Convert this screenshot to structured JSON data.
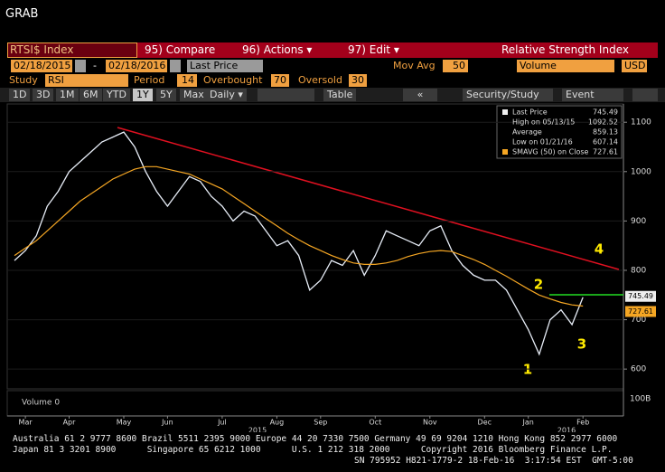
{
  "header": {
    "title": "GRAB"
  },
  "toolbar": {
    "ticker": "RTSI$ Index",
    "menu": [
      "95) Compare",
      "96) Actions ▾",
      "97) Edit ▾"
    ],
    "study_title": "Relative Strength Index",
    "start_date": "02/18/2015",
    "separator": "-",
    "end_date": "02/18/2016",
    "price_field": "Last Price",
    "mov_avg_label": "Mov Avg",
    "mov_avg": "50",
    "lower_field": "Volume",
    "currency": "USD",
    "study_label": "Study",
    "study": "RSI",
    "period_label": "Period",
    "period": "14",
    "overbought_label": "Overbought",
    "overbought": "70",
    "oversold_label": "Oversold",
    "oversold": "30",
    "ranges": [
      "1D",
      "3D",
      "1M",
      "6M",
      "YTD",
      "1Y",
      "5Y",
      "Max"
    ],
    "frequency": "Daily ▾",
    "table": "Table",
    "back": "«",
    "security_study": "Security/Study",
    "event": "Event"
  },
  "chart_data": {
    "type": "line",
    "categories": [
      null,
      "Mar",
      null,
      null,
      null,
      "Apr",
      null,
      null,
      null,
      null,
      "May",
      null,
      null,
      null,
      "Jun",
      null,
      null,
      null,
      null,
      "Jul",
      null,
      null,
      null,
      null,
      "Aug",
      null,
      null,
      null,
      "Sep",
      null,
      null,
      null,
      null,
      "Oct",
      null,
      null,
      null,
      null,
      "Nov",
      null,
      null,
      null,
      null,
      "Dec",
      null,
      null,
      null,
      "Jan",
      null,
      null,
      null,
      null,
      "Feb"
    ],
    "year_labels": [
      "2015",
      "2016"
    ],
    "series": [
      {
        "name": "Last Price",
        "color": "#e8eef8",
        "values": [
          820,
          840,
          870,
          930,
          960,
          1000,
          1020,
          1040,
          1060,
          1070,
          1080,
          1050,
          1000,
          960,
          930,
          960,
          990,
          980,
          950,
          930,
          900,
          920,
          910,
          880,
          850,
          860,
          830,
          760,
          780,
          820,
          810,
          840,
          790,
          830,
          880,
          870,
          860,
          850,
          880,
          890,
          840,
          810,
          790,
          780,
          780,
          760,
          720,
          680,
          630,
          700,
          720,
          690,
          745.49
        ]
      },
      {
        "name": "SMAVG (50) on Close",
        "color": "#f5a623",
        "values": [
          830,
          845,
          860,
          880,
          900,
          920,
          940,
          955,
          970,
          985,
          995,
          1005,
          1010,
          1010,
          1005,
          1000,
          995,
          985,
          975,
          965,
          950,
          935,
          920,
          905,
          890,
          875,
          862,
          850,
          840,
          830,
          822,
          815,
          812,
          812,
          815,
          820,
          828,
          834,
          838,
          840,
          838,
          830,
          822,
          812,
          800,
          788,
          775,
          762,
          750,
          742,
          735,
          730,
          727.61
        ]
      }
    ],
    "stats": [
      {
        "label": "Last Price",
        "value": 745.49
      },
      {
        "label": "High on 05/13/15",
        "value": 1092.52
      },
      {
        "label": "Average",
        "value": 859.13
      },
      {
        "label": "Low on 01/21/16",
        "value": 607.14
      },
      {
        "label": "SMAVG (50) on Close",
        "value": 727.61
      }
    ],
    "annotations": [
      "1",
      "2",
      "3",
      "4"
    ],
    "volume_label": "Volume 0",
    "volume_axis_label": "100B",
    "ylim": [
      560,
      1137
    ],
    "yticks": [
      600,
      700,
      800,
      900,
      1000,
      1100
    ],
    "grid": true
  },
  "footer": [
    "Australia 61 2 9777 8600 Brazil 5511 2395 9000 Europe 44 20 7330 7500 Germany 49 69 9204 1210 Hong Kong 852 2977 6000",
    "Japan 81 3 3201 8900      Singapore 65 6212 1000      U.S. 1 212 318 2000      Copyright 2016 Bloomberg Finance L.P.",
    "SN 795952 H821-1779-2 18-Feb-16  3:17:54 EST  GMT-5:00"
  ]
}
